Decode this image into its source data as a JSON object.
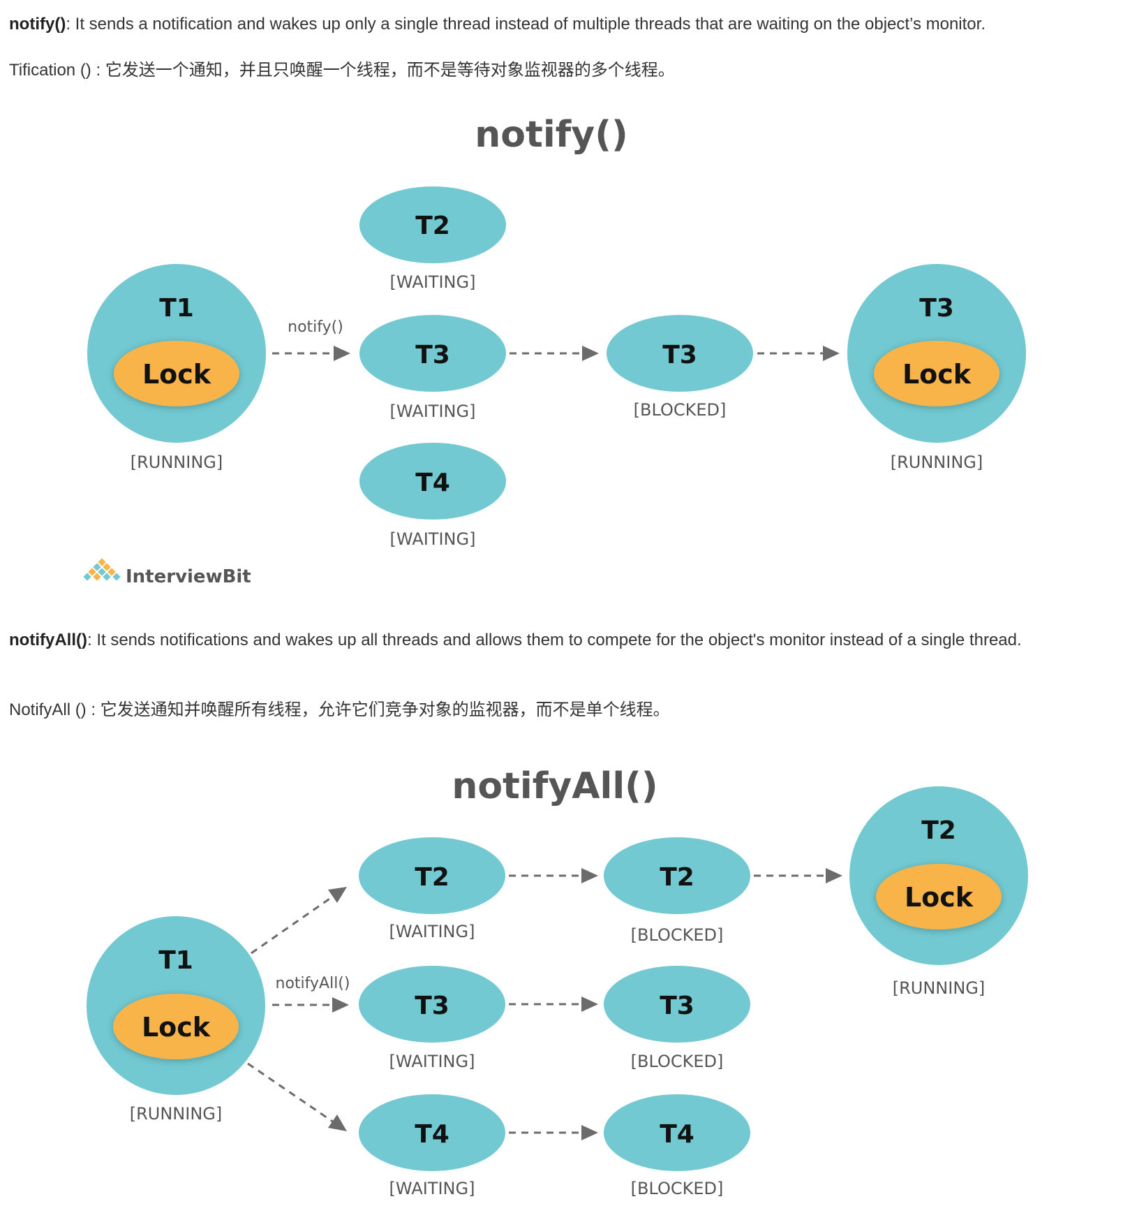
{
  "notify_section": {
    "heading": "notify()",
    "description": ": It sends a notification and wakes up only a single thread instead of multiple threads that are waiting on the object’s monitor.",
    "translation": "Tification () : 它发送一个通知，并且只唤醒一个线程，而不是等待对象监视器的多个线程。",
    "diagram": {
      "title": "notify()",
      "arrow_label": "notify()",
      "source": {
        "thread": "T1",
        "lock": "Lock",
        "state": "[RUNNING]"
      },
      "waiting": [
        {
          "thread": "T2",
          "state": "[WAITING]"
        },
        {
          "thread": "T3",
          "state": "[WAITING]"
        },
        {
          "thread": "T4",
          "state": "[WAITING]"
        }
      ],
      "blocked": {
        "thread": "T3",
        "state": "[BLOCKED]"
      },
      "result": {
        "thread": "T3",
        "lock": "Lock",
        "state": "[RUNNING]"
      },
      "logo": "InterviewBit"
    }
  },
  "notifyall_section": {
    "heading": "notifyAll()",
    "description": ": It sends notifications and wakes up all threads and allows them to compete for the object's monitor instead of a single thread.",
    "translation": "NotifyAll () : 它发送通知并唤醒所有线程，允许它们竞争对象的监视器，而不是单个线程。",
    "diagram": {
      "title": "notifyAll()",
      "arrow_label": "notifyAll()",
      "source": {
        "thread": "T1",
        "lock": "Lock",
        "state": "[RUNNING]"
      },
      "waiting": [
        {
          "thread": "T2",
          "state": "[WAITING]"
        },
        {
          "thread": "T3",
          "state": "[WAITING]"
        },
        {
          "thread": "T4",
          "state": "[WAITING]"
        }
      ],
      "blocked": [
        {
          "thread": "T2",
          "state": "[BLOCKED]"
        },
        {
          "thread": "T3",
          "state": "[BLOCKED]"
        },
        {
          "thread": "T4",
          "state": "[BLOCKED]"
        }
      ],
      "result": {
        "thread": "T2",
        "lock": "Lock",
        "state": "[RUNNING]"
      }
    }
  },
  "colors": {
    "thread": "#72c9d1",
    "lock": "#f8b448",
    "arrow": "#6b6b6b"
  }
}
